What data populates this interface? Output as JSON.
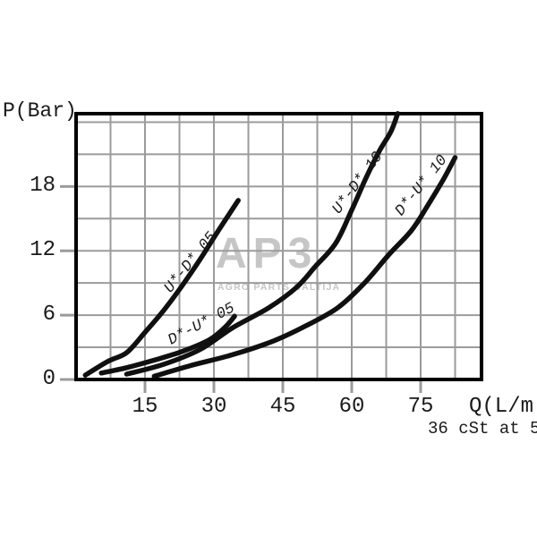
{
  "chart_data": {
    "type": "line",
    "title": "",
    "xlabel": "Q(L/m",
    "ylabel": "P(Bar)",
    "annotation": "36 cSt at 5",
    "xlim": [
      0,
      88.2
    ],
    "ylim": [
      0,
      24.8
    ],
    "x_ticks": [
      15,
      30,
      45,
      60,
      75
    ],
    "x_tick_labels": [
      "15",
      "30",
      "45",
      "60",
      "75"
    ],
    "y_ticks": [
      0,
      6,
      12,
      18
    ],
    "y_tick_labels_top_to_bottom": [
      "18",
      "12",
      "6",
      "0"
    ],
    "grid": true,
    "x_minor_grid_step": 7.5,
    "y_grid_step": 3,
    "legend_position": "labels-on-curves",
    "series": [
      {
        "name": "U*-D* 05",
        "points": [
          [
            2,
            0.4
          ],
          [
            7,
            1.7
          ],
          [
            11,
            2.5
          ],
          [
            15,
            4.4
          ],
          [
            19,
            6.4
          ],
          [
            23,
            8.7
          ],
          [
            27,
            11.2
          ],
          [
            31,
            13.9
          ],
          [
            35.3,
            16.7
          ]
        ]
      },
      {
        "name": "D*-U* 05",
        "points": [
          [
            5.5,
            0.6
          ],
          [
            11,
            1.1
          ],
          [
            17,
            1.8
          ],
          [
            23,
            2.6
          ],
          [
            29,
            3.7
          ],
          [
            32.5,
            4.9
          ],
          [
            34.5,
            5.9
          ]
        ]
      },
      {
        "name": "U*-D* 10",
        "points": [
          [
            11,
            0.5
          ],
          [
            19,
            1.4
          ],
          [
            27,
            2.8
          ],
          [
            34,
            4.8
          ],
          [
            42,
            6.7
          ],
          [
            48,
            8.6
          ],
          [
            52,
            10.5
          ],
          [
            56.5,
            12.7
          ],
          [
            60,
            15.8
          ],
          [
            63,
            18.7
          ],
          [
            66,
            21.3
          ],
          [
            68.5,
            23.1
          ],
          [
            70,
            24.8
          ]
        ]
      },
      {
        "name": "D*-U* 10",
        "points": [
          [
            17,
            0.3
          ],
          [
            25,
            1.3
          ],
          [
            34,
            2.3
          ],
          [
            43,
            3.6
          ],
          [
            50,
            5.0
          ],
          [
            57,
            6.7
          ],
          [
            63,
            9.1
          ],
          [
            68,
            11.6
          ],
          [
            73,
            13.9
          ],
          [
            76.5,
            16.2
          ],
          [
            80,
            18.7
          ],
          [
            82.5,
            20.7
          ]
        ]
      }
    ]
  },
  "watermark": {
    "logo": "AP3",
    "subtitle": "AGRO PARTS BALTIJA"
  },
  "colors": {
    "background": "#ffffff",
    "curve": "#101010",
    "grid": "#9b9b9b",
    "frame": "#000000",
    "text": "#1a1a1a",
    "watermark": "#c6c6c6"
  }
}
